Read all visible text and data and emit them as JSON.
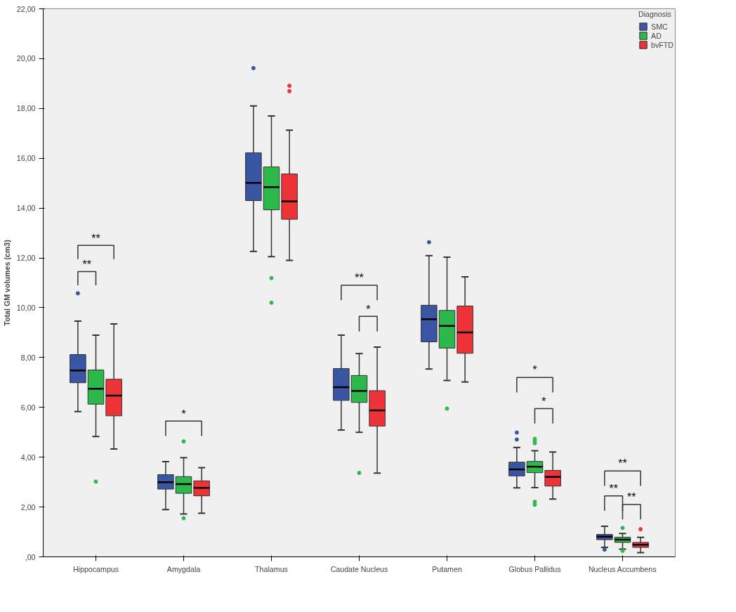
{
  "chart_data": {
    "type": "box",
    "ylabel": "Total GM volumes (cm3)",
    "legend_title": "Diagnosis",
    "legend": "top right",
    "grid": false,
    "marker": "circle",
    "categories": [
      "Hippocampus",
      "Amygdala",
      "Thalamus",
      "Caudate Nucleus",
      "Putamen",
      "Globus Pallidus",
      "Nucleus Accumbens"
    ],
    "ylim": [
      0,
      22
    ],
    "yticks": [
      {
        "value": 0,
        "label": ",00"
      },
      {
        "value": 2,
        "label": "2,00"
      },
      {
        "value": 4,
        "label": "4,00"
      },
      {
        "value": 6,
        "label": "6,00"
      },
      {
        "value": 8,
        "label": "8,00"
      },
      {
        "value": 10,
        "label": "10,00"
      },
      {
        "value": 12,
        "label": "12,00"
      },
      {
        "value": 14,
        "label": "14,00"
      },
      {
        "value": 16,
        "label": "16,00"
      },
      {
        "value": 18,
        "label": "18,00"
      },
      {
        "value": 20,
        "label": "20,00"
      },
      {
        "value": 22,
        "label": "22,00"
      }
    ],
    "series": [
      {
        "name": "SMC",
        "color": "#3a55a4",
        "boxes": [
          {
            "low": 5.83,
            "q1": 6.99,
            "median": 7.48,
            "q3": 8.12,
            "high": 9.46,
            "outliers": [
              10.58
            ]
          },
          {
            "low": 1.9,
            "q1": 2.72,
            "median": 3.0,
            "q3": 3.3,
            "high": 3.82
          },
          {
            "low": 12.26,
            "q1": 14.3,
            "median": 15.01,
            "q3": 16.22,
            "high": 18.1,
            "outliers": [
              19.62
            ]
          },
          {
            "low": 5.09,
            "q1": 6.28,
            "median": 6.81,
            "q3": 7.56,
            "high": 8.9
          },
          {
            "low": 7.54,
            "q1": 8.63,
            "median": 9.54,
            "q3": 10.1,
            "high": 12.09,
            "outliers": [
              12.63
            ]
          },
          {
            "low": 2.77,
            "q1": 3.25,
            "median": 3.51,
            "q3": 3.8,
            "high": 4.39,
            "outliers": [
              4.99,
              4.71
            ]
          },
          {
            "low": 0.38,
            "q1": 0.69,
            "median": 0.81,
            "q3": 0.9,
            "high": 1.23,
            "outliers": [
              0.29
            ]
          }
        ]
      },
      {
        "name": "AD",
        "color": "#2db84b",
        "boxes": [
          {
            "low": 4.83,
            "q1": 6.13,
            "median": 6.75,
            "q3": 7.5,
            "high": 8.9,
            "outliers": [
              3.02
            ]
          },
          {
            "low": 1.72,
            "q1": 2.55,
            "median": 2.92,
            "q3": 3.22,
            "high": 3.98,
            "outliers": [
              4.63,
              1.55
            ]
          },
          {
            "low": 12.05,
            "q1": 13.93,
            "median": 14.84,
            "q3": 15.65,
            "high": 17.7,
            "outliers": [
              11.19,
              10.2
            ]
          },
          {
            "low": 5.0,
            "q1": 6.2,
            "median": 6.66,
            "q3": 7.28,
            "high": 8.16,
            "outliers": [
              3.37
            ]
          },
          {
            "low": 7.08,
            "q1": 8.38,
            "median": 9.27,
            "q3": 9.89,
            "high": 12.03,
            "outliers": [
              5.95
            ]
          },
          {
            "low": 2.78,
            "q1": 3.38,
            "median": 3.62,
            "q3": 3.83,
            "high": 4.26,
            "outliers": [
              4.74,
              4.65,
              4.56,
              2.21,
              2.09
            ]
          },
          {
            "low": 0.31,
            "q1": 0.58,
            "median": 0.69,
            "q3": 0.79,
            "high": 0.94,
            "outliers": [
              1.16,
              0.24
            ]
          }
        ]
      },
      {
        "name": "bvFTD",
        "color": "#ee3338",
        "boxes": [
          {
            "low": 4.33,
            "q1": 5.66,
            "median": 6.47,
            "q3": 7.13,
            "high": 9.35
          },
          {
            "low": 1.75,
            "q1": 2.45,
            "median": 2.77,
            "q3": 3.05,
            "high": 3.58
          },
          {
            "low": 11.9,
            "q1": 13.55,
            "median": 14.27,
            "q3": 15.37,
            "high": 17.13,
            "outliers": [
              18.91,
              18.69
            ]
          },
          {
            "low": 3.36,
            "q1": 5.25,
            "median": 5.88,
            "q3": 6.67,
            "high": 8.42
          },
          {
            "low": 7.02,
            "q1": 8.17,
            "median": 9.01,
            "q3": 10.07,
            "high": 11.24
          },
          {
            "low": 2.32,
            "q1": 2.84,
            "median": 3.21,
            "q3": 3.47,
            "high": 4.21
          },
          {
            "low": 0.17,
            "q1": 0.38,
            "median": 0.49,
            "q3": 0.58,
            "high": 0.78,
            "outliers": [
              1.11
            ]
          }
        ]
      }
    ],
    "annotations": [
      "**",
      "**",
      "*",
      "**",
      "*",
      "*",
      "*",
      "**",
      "**",
      "**"
    ]
  }
}
